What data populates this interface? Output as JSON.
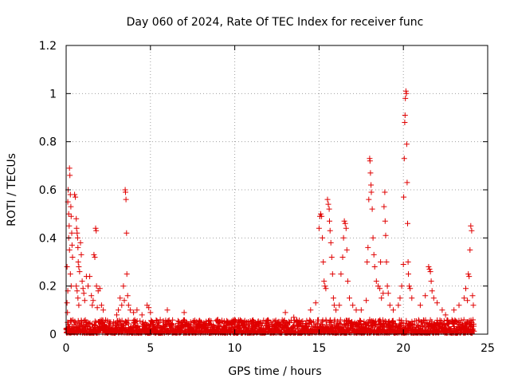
{
  "chart_data": {
    "type": "scatter",
    "title": "Day 060 of 2024, Rate Of TEC Index for receiver func",
    "xlabel": "GPS time / hours",
    "ylabel": "ROTI / TECUs",
    "xlim": [
      0,
      25
    ],
    "ylim": [
      0,
      1.2
    ],
    "xticks": [
      0,
      5,
      10,
      15,
      20,
      25
    ],
    "xtick_labels": [
      "0",
      "5",
      "10",
      "15",
      "20",
      "25"
    ],
    "yticks": [
      0,
      0.2,
      0.4,
      0.6,
      0.8,
      1.0,
      1.2
    ],
    "ytick_labels": [
      "0",
      "0.2",
      "0.4",
      "0.6",
      "0.8",
      "1",
      "1.2"
    ],
    "grid": true,
    "marker": "plus",
    "color": "#e00000",
    "points": [
      [
        0.05,
        0.28
      ],
      [
        0.1,
        0.55
      ],
      [
        0.12,
        0.6
      ],
      [
        0.15,
        0.5
      ],
      [
        0.18,
        0.45
      ],
      [
        0.2,
        0.69
      ],
      [
        0.22,
        0.66
      ],
      [
        0.25,
        0.58
      ],
      [
        0.28,
        0.53
      ],
      [
        0.3,
        0.49
      ],
      [
        0.33,
        0.42
      ],
      [
        0.35,
        0.37
      ],
      [
        0.38,
        0.32
      ],
      [
        0.15,
        0.4
      ],
      [
        0.2,
        0.35
      ],
      [
        0.25,
        0.25
      ],
      [
        0.3,
        0.2
      ],
      [
        0.1,
        0.18
      ],
      [
        0.05,
        0.13
      ],
      [
        0.08,
        0.09
      ],
      [
        0.5,
        0.58
      ],
      [
        0.55,
        0.57
      ],
      [
        0.6,
        0.48
      ],
      [
        0.62,
        0.44
      ],
      [
        0.65,
        0.42
      ],
      [
        0.68,
        0.4
      ],
      [
        0.7,
        0.36
      ],
      [
        0.72,
        0.3
      ],
      [
        0.75,
        0.28
      ],
      [
        0.8,
        0.26
      ],
      [
        0.85,
        0.38
      ],
      [
        0.9,
        0.33
      ],
      [
        0.95,
        0.22
      ],
      [
        1.0,
        0.19
      ],
      [
        1.05,
        0.17
      ],
      [
        1.1,
        0.14
      ],
      [
        0.6,
        0.2
      ],
      [
        0.65,
        0.18
      ],
      [
        0.7,
        0.15
      ],
      [
        0.75,
        0.12
      ],
      [
        1.2,
        0.24
      ],
      [
        1.3,
        0.2
      ],
      [
        1.4,
        0.24
      ],
      [
        1.5,
        0.16
      ],
      [
        1.55,
        0.12
      ],
      [
        1.6,
        0.14
      ],
      [
        1.65,
        0.33
      ],
      [
        1.7,
        0.32
      ],
      [
        1.75,
        0.44
      ],
      [
        1.78,
        0.43
      ],
      [
        1.8,
        0.2
      ],
      [
        1.85,
        0.11
      ],
      [
        1.9,
        0.18
      ],
      [
        2.0,
        0.19
      ],
      [
        2.1,
        0.12
      ],
      [
        2.2,
        0.1
      ],
      [
        3.0,
        0.08
      ],
      [
        3.1,
        0.1
      ],
      [
        3.2,
        0.15
      ],
      [
        3.3,
        0.12
      ],
      [
        3.4,
        0.2
      ],
      [
        3.45,
        0.14
      ],
      [
        3.5,
        0.6
      ],
      [
        3.52,
        0.59
      ],
      [
        3.55,
        0.56
      ],
      [
        3.58,
        0.42
      ],
      [
        3.6,
        0.25
      ],
      [
        3.65,
        0.16
      ],
      [
        3.7,
        0.12
      ],
      [
        3.8,
        0.1
      ],
      [
        4.0,
        0.09
      ],
      [
        4.2,
        0.1
      ],
      [
        4.5,
        0.08
      ],
      [
        4.8,
        0.12
      ],
      [
        4.9,
        0.11
      ],
      [
        5.0,
        0.09
      ],
      [
        6.0,
        0.1
      ],
      [
        7.0,
        0.09
      ],
      [
        8.0,
        0.05
      ],
      [
        9.0,
        0.06
      ],
      [
        10.0,
        0.06
      ],
      [
        11.0,
        0.05
      ],
      [
        12.0,
        0.04
      ],
      [
        12.8,
        0.05
      ],
      [
        13.0,
        0.09
      ],
      [
        13.5,
        0.07
      ],
      [
        14.5,
        0.1
      ],
      [
        14.8,
        0.13
      ],
      [
        15.0,
        0.44
      ],
      [
        15.05,
        0.49
      ],
      [
        15.1,
        0.5
      ],
      [
        15.15,
        0.49
      ],
      [
        15.2,
        0.4
      ],
      [
        15.25,
        0.3
      ],
      [
        15.3,
        0.22
      ],
      [
        15.35,
        0.2
      ],
      [
        15.4,
        0.19
      ],
      [
        15.5,
        0.56
      ],
      [
        15.55,
        0.54
      ],
      [
        15.6,
        0.52
      ],
      [
        15.62,
        0.47
      ],
      [
        15.65,
        0.43
      ],
      [
        15.7,
        0.38
      ],
      [
        15.75,
        0.32
      ],
      [
        15.8,
        0.25
      ],
      [
        15.85,
        0.15
      ],
      [
        15.9,
        0.12
      ],
      [
        16.0,
        0.1
      ],
      [
        16.2,
        0.12
      ],
      [
        16.3,
        0.25
      ],
      [
        16.4,
        0.32
      ],
      [
        16.45,
        0.4
      ],
      [
        16.5,
        0.47
      ],
      [
        16.55,
        0.46
      ],
      [
        16.6,
        0.44
      ],
      [
        16.65,
        0.35
      ],
      [
        16.7,
        0.22
      ],
      [
        16.8,
        0.15
      ],
      [
        17.0,
        0.12
      ],
      [
        17.2,
        0.1
      ],
      [
        17.5,
        0.1
      ],
      [
        17.8,
        0.14
      ],
      [
        17.85,
        0.3
      ],
      [
        17.9,
        0.36
      ],
      [
        17.95,
        0.56
      ],
      [
        18.0,
        0.73
      ],
      [
        18.02,
        0.72
      ],
      [
        18.05,
        0.67
      ],
      [
        18.08,
        0.62
      ],
      [
        18.1,
        0.59
      ],
      [
        18.15,
        0.52
      ],
      [
        18.2,
        0.4
      ],
      [
        18.25,
        0.33
      ],
      [
        18.3,
        0.28
      ],
      [
        18.4,
        0.22
      ],
      [
        18.5,
        0.2
      ],
      [
        18.6,
        0.19
      ],
      [
        18.65,
        0.3
      ],
      [
        18.7,
        0.15
      ],
      [
        18.8,
        0.17
      ],
      [
        18.85,
        0.53
      ],
      [
        18.9,
        0.59
      ],
      [
        18.92,
        0.47
      ],
      [
        18.95,
        0.41
      ],
      [
        19.0,
        0.3
      ],
      [
        19.05,
        0.2
      ],
      [
        19.1,
        0.17
      ],
      [
        19.2,
        0.12
      ],
      [
        19.4,
        0.1
      ],
      [
        19.7,
        0.12
      ],
      [
        19.8,
        0.15
      ],
      [
        19.9,
        0.2
      ],
      [
        20.0,
        0.29
      ],
      [
        20.02,
        0.57
      ],
      [
        20.05,
        0.73
      ],
      [
        20.08,
        0.88
      ],
      [
        20.1,
        0.91
      ],
      [
        20.12,
        0.98
      ],
      [
        20.15,
        1.01
      ],
      [
        20.18,
        1.0
      ],
      [
        20.2,
        0.79
      ],
      [
        20.22,
        0.63
      ],
      [
        20.25,
        0.46
      ],
      [
        20.28,
        0.3
      ],
      [
        20.3,
        0.25
      ],
      [
        20.35,
        0.2
      ],
      [
        20.4,
        0.19
      ],
      [
        20.5,
        0.15
      ],
      [
        21.0,
        0.12
      ],
      [
        21.3,
        0.16
      ],
      [
        21.5,
        0.28
      ],
      [
        21.55,
        0.27
      ],
      [
        21.6,
        0.26
      ],
      [
        21.65,
        0.22
      ],
      [
        21.7,
        0.18
      ],
      [
        21.8,
        0.15
      ],
      [
        22.0,
        0.13
      ],
      [
        22.3,
        0.1
      ],
      [
        22.5,
        0.08
      ],
      [
        23.0,
        0.1
      ],
      [
        23.3,
        0.12
      ],
      [
        23.6,
        0.15
      ],
      [
        23.7,
        0.19
      ],
      [
        23.8,
        0.14
      ],
      [
        23.85,
        0.25
      ],
      [
        23.9,
        0.24
      ],
      [
        23.95,
        0.35
      ],
      [
        24.0,
        0.45
      ],
      [
        24.05,
        0.43
      ],
      [
        24.1,
        0.16
      ],
      [
        24.15,
        0.12
      ]
    ],
    "baseline_x_range": [
      0,
      24.2
    ],
    "baseline_y_range": [
      0.005,
      0.06
    ]
  }
}
